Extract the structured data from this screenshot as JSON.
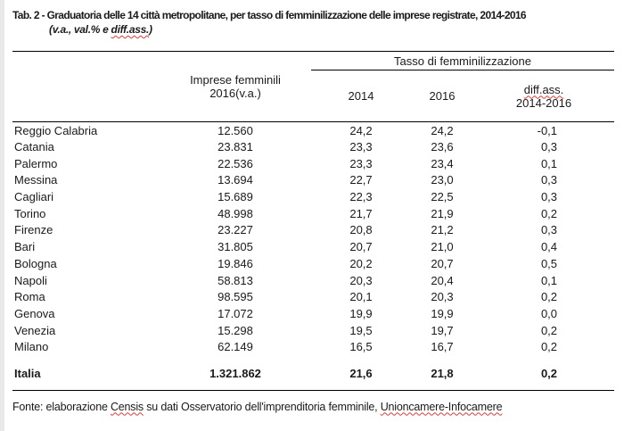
{
  "title": {
    "line1": "Tab. 2 - Graduatoria delle 14 città metropolitane, per tasso di femminilizzazione delle imprese registrate, 2014-2016",
    "line2_prefix": "(v.a., val.% e ",
    "line2_misspelled": "diff.ass.",
    "line2_suffix": ")"
  },
  "table": {
    "group_header": "Tasso di femminilizzazione",
    "col_headers": {
      "va_line1": "Imprese femminili",
      "va_line2": "2016(v.a.)",
      "y2014": "2014",
      "y2016": "2016",
      "diff_line1": "diff.ass.",
      "diff_line2": "2014-2016"
    },
    "rows": [
      {
        "city": "Reggio Calabria",
        "va": "12.560",
        "y2014": "24,2",
        "y2016": "24,2",
        "diff": "-0,1"
      },
      {
        "city": "Catania",
        "va": "23.831",
        "y2014": "23,3",
        "y2016": "23,6",
        "diff": "0,3"
      },
      {
        "city": "Palermo",
        "va": "22.536",
        "y2014": "23,3",
        "y2016": "23,4",
        "diff": "0,1"
      },
      {
        "city": "Messina",
        "va": "13.694",
        "y2014": "22,7",
        "y2016": "23,0",
        "diff": "0,3"
      },
      {
        "city": "Cagliari",
        "va": "15.689",
        "y2014": "22,3",
        "y2016": "22,5",
        "diff": "0,3"
      },
      {
        "city": "Torino",
        "va": "48.998",
        "y2014": "21,7",
        "y2016": "21,9",
        "diff": "0,2"
      },
      {
        "city": "Firenze",
        "va": "23.227",
        "y2014": "20,8",
        "y2016": "21,2",
        "diff": "0,3"
      },
      {
        "city": "Bari",
        "va": "31.805",
        "y2014": "20,7",
        "y2016": "21,0",
        "diff": "0,4"
      },
      {
        "city": "Bologna",
        "va": "19.846",
        "y2014": "20,2",
        "y2016": "20,7",
        "diff": "0,5"
      },
      {
        "city": "Napoli",
        "va": "58.813",
        "y2014": "20,3",
        "y2016": "20,4",
        "diff": "0,1"
      },
      {
        "city": "Roma",
        "va": "98.595",
        "y2014": "20,1",
        "y2016": "20,3",
        "diff": "0,2"
      },
      {
        "city": "Genova",
        "va": "17.072",
        "y2014": "19,9",
        "y2016": "19,9",
        "diff": "0,0"
      },
      {
        "city": "Venezia",
        "va": "15.298",
        "y2014": "19,5",
        "y2016": "19,7",
        "diff": "0,2"
      },
      {
        "city": "Milano",
        "va": "62.149",
        "y2014": "16,5",
        "y2016": "16,7",
        "diff": "0,2"
      }
    ],
    "total": {
      "city": "Italia",
      "va": "1.321.862",
      "y2014": "21,6",
      "y2016": "21,8",
      "diff": "0,2"
    }
  },
  "footer": {
    "prefix": "Fonte: elaborazione ",
    "censis": "Censis",
    "middle": " su dati Osservatorio dell'imprenditoria femminile, ",
    "unioncamere": "Unioncamere-Infocamere"
  },
  "colors": {
    "text": "#1a1a1a",
    "rule": "#000000",
    "spellcheck_underline": "#dc3c3c",
    "edge_strip": "#e9e9e9"
  }
}
